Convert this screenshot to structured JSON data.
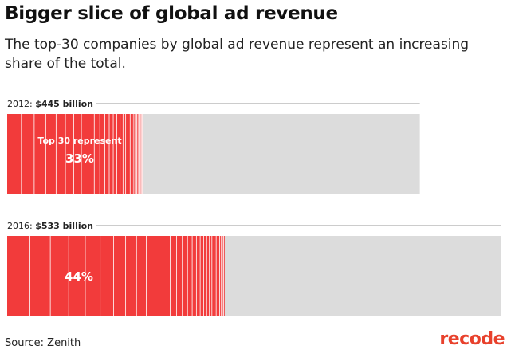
{
  "title": "Bigger slice of global ad revenue",
  "subtitle": "The top-30 companies by global ad revenue represent an increasing share of the total.",
  "source": "Source: Zenith",
  "logo": "recode",
  "colors": {
    "top30": "#f23b3b",
    "rest": "#dcdcdc",
    "divider": "#ffffff",
    "rule": "#999999"
  },
  "chart_data": {
    "type": "bar",
    "orientation": "horizontal",
    "title": "Bigger slice of global ad revenue",
    "subtitle": "The top-30 companies by global ad revenue represent an increasing share of the total.",
    "series": [
      {
        "year_label": "2012: ",
        "total_label": "$445 billion",
        "total_billion": 445,
        "share_pct": 33,
        "inner_label": "Top 30 represent",
        "pct_label": "33%",
        "segment_count": 30
      },
      {
        "year_label": "2016: ",
        "total_label": "$533 billion",
        "total_billion": 533,
        "share_pct": 44,
        "inner_label": "",
        "pct_label": "44%",
        "segment_count": 30
      }
    ],
    "source": "Source: Zenith"
  }
}
